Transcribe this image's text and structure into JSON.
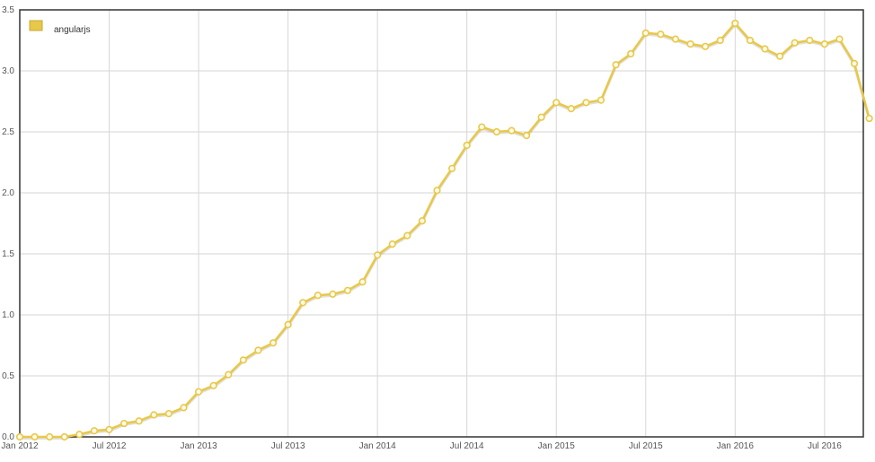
{
  "chart_data": {
    "type": "line",
    "title": "",
    "xlabel": "",
    "ylabel": "",
    "ylim": [
      0,
      3.5
    ],
    "y_ticks": [
      "0.0",
      "0.5",
      "1.0",
      "1.5",
      "2.0",
      "2.5",
      "3.0",
      "3.5"
    ],
    "x_tick_labels": [
      "Jan 2012",
      "Jul 2012",
      "Jan 2013",
      "Jul 2013",
      "Jan 2014",
      "Jul 2014",
      "Jan 2015",
      "Jul 2015",
      "Jan 2016",
      "Jul 2016"
    ],
    "xlim": [
      "2012-01",
      "2016-09"
    ],
    "grid": true,
    "legend_position": "top-left",
    "series": [
      {
        "name": "angularjs",
        "color": "#e8c84a",
        "x": [
          "2012-01",
          "2012-02",
          "2012-03",
          "2012-04",
          "2012-05",
          "2012-06",
          "2012-07",
          "2012-08",
          "2012-09",
          "2012-10",
          "2012-11",
          "2012-12",
          "2013-01",
          "2013-02",
          "2013-03",
          "2013-04",
          "2013-05",
          "2013-06",
          "2013-07",
          "2013-08",
          "2013-09",
          "2013-10",
          "2013-11",
          "2013-12",
          "2014-01",
          "2014-02",
          "2014-03",
          "2014-04",
          "2014-05",
          "2014-06",
          "2014-07",
          "2014-08",
          "2014-09",
          "2014-10",
          "2014-11",
          "2014-12",
          "2015-01",
          "2015-02",
          "2015-03",
          "2015-04",
          "2015-05",
          "2015-06",
          "2015-07",
          "2015-08",
          "2015-09",
          "2015-10",
          "2015-11",
          "2015-12",
          "2016-01",
          "2016-02",
          "2016-03",
          "2016-04",
          "2016-05",
          "2016-06",
          "2016-07",
          "2016-08",
          "2016-09",
          "2016-10"
        ],
        "values": [
          0.0,
          0.0,
          0.0,
          0.0,
          0.02,
          0.05,
          0.06,
          0.11,
          0.13,
          0.18,
          0.19,
          0.24,
          0.37,
          0.42,
          0.51,
          0.63,
          0.71,
          0.77,
          0.92,
          1.1,
          1.16,
          1.17,
          1.2,
          1.27,
          1.49,
          1.58,
          1.65,
          1.77,
          2.02,
          2.2,
          2.39,
          2.54,
          2.5,
          2.51,
          2.47,
          2.62,
          2.74,
          2.69,
          2.74,
          2.76,
          3.05,
          3.14,
          3.31,
          3.3,
          3.26,
          3.22,
          3.2,
          3.25,
          3.39,
          3.25,
          3.18,
          3.12,
          3.23,
          3.25,
          3.22,
          3.26,
          3.06,
          2.61
        ]
      }
    ]
  }
}
